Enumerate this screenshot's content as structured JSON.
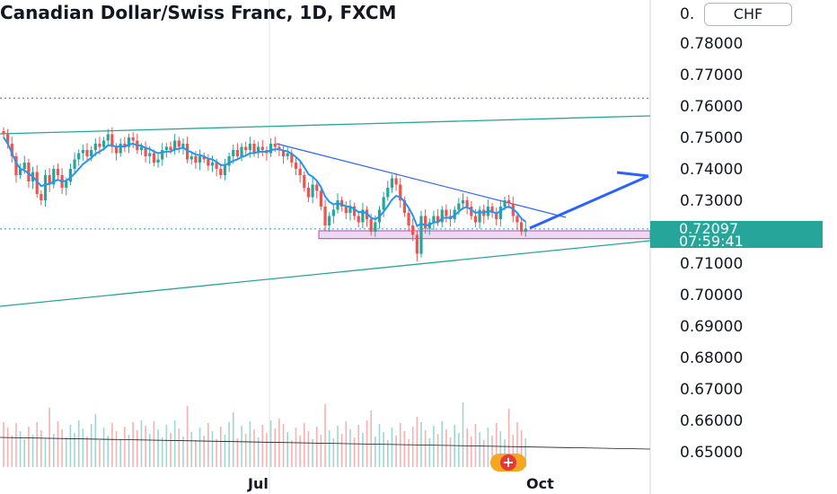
{
  "header": {
    "title": "Canadian Dollar/Swiss Franc, 1D, FXCM",
    "currency_button": "CHF"
  },
  "price_label": {
    "price": "0.72097",
    "countdown": "07:59:41"
  },
  "colors": {
    "up": "#26a69a",
    "down": "#ef5350",
    "ma_line": "#2196f3",
    "trend_line": "#2962ff",
    "support_zone": "#ce93d8",
    "price_label": "#26a69a"
  },
  "icons": [
    "snapshot-badge-icon"
  ],
  "chart_data": {
    "type": "candlestick",
    "instrument": "Canadian Dollar/Swiss Franc",
    "timeframe": "1D",
    "source": "FXCM",
    "y_axis": {
      "ticks": [
        0.78,
        0.77,
        0.76,
        0.75,
        0.74,
        0.73,
        0.71,
        0.7,
        0.69,
        0.68,
        0.67,
        0.66,
        0.65
      ],
      "tick_labels": [
        "0.78000",
        "0.77000",
        "0.76000",
        "0.75000",
        "0.74000",
        "0.73000",
        "0.71000",
        "0.70000",
        "0.69000",
        "0.68000",
        "0.67000",
        "0.66000",
        "0.65000"
      ],
      "partial_top_label": "0.",
      "range": [
        0.643,
        0.791
      ]
    },
    "x_axis": {
      "tick_labels": [
        "Jul",
        "Oct"
      ]
    },
    "last_price": 0.72097,
    "horizontal_levels": [
      0.7625,
      0.7209
    ],
    "support_zone": [
      0.7178,
      0.7203
    ],
    "closes": [
      0.751,
      0.748,
      0.744,
      0.738,
      0.74,
      0.742,
      0.736,
      0.739,
      0.732,
      0.73,
      0.738,
      0.735,
      0.74,
      0.738,
      0.734,
      0.736,
      0.74,
      0.743,
      0.745,
      0.746,
      0.744,
      0.746,
      0.748,
      0.747,
      0.749,
      0.751,
      0.747,
      0.745,
      0.748,
      0.747,
      0.75,
      0.749,
      0.746,
      0.747,
      0.744,
      0.745,
      0.742,
      0.743,
      0.746,
      0.747,
      0.746,
      0.749,
      0.747,
      0.748,
      0.743,
      0.744,
      0.742,
      0.744,
      0.743,
      0.741,
      0.742,
      0.74,
      0.738,
      0.741,
      0.744,
      0.746,
      0.744,
      0.747,
      0.746,
      0.748,
      0.745,
      0.747,
      0.746,
      0.745,
      0.748,
      0.747,
      0.746,
      0.744,
      0.745,
      0.742,
      0.74,
      0.738,
      0.734,
      0.731,
      0.735,
      0.733,
      0.728,
      0.722,
      0.725,
      0.727,
      0.73,
      0.728,
      0.726,
      0.728,
      0.725,
      0.723,
      0.727,
      0.724,
      0.72,
      0.723,
      0.727,
      0.731,
      0.734,
      0.737,
      0.735,
      0.73,
      0.726,
      0.722,
      0.719,
      0.713,
      0.725,
      0.721,
      0.723,
      0.725,
      0.723,
      0.727,
      0.725,
      0.724,
      0.727,
      0.729,
      0.73,
      0.728,
      0.725,
      0.723,
      0.727,
      0.725,
      0.728,
      0.726,
      0.724,
      0.728,
      0.73,
      0.729,
      0.725,
      0.723,
      0.72,
      0.721
    ],
    "ma": [
      0.75,
      0.748,
      0.745,
      0.742,
      0.74,
      0.7395,
      0.7385,
      0.7375,
      0.736,
      0.7345,
      0.735,
      0.7352,
      0.736,
      0.7365,
      0.736,
      0.7362,
      0.7372,
      0.7385,
      0.74,
      0.7415,
      0.7425,
      0.7435,
      0.7448,
      0.7455,
      0.7463,
      0.7475,
      0.7475,
      0.747,
      0.7472,
      0.747,
      0.7478,
      0.748,
      0.7475,
      0.7474,
      0.7466,
      0.7463,
      0.7455,
      0.745,
      0.7452,
      0.7455,
      0.7455,
      0.7462,
      0.7464,
      0.7468,
      0.7458,
      0.7453,
      0.7445,
      0.7444,
      0.744,
      0.7432,
      0.743,
      0.7422,
      0.7412,
      0.7412,
      0.7418,
      0.7426,
      0.743,
      0.7438,
      0.7442,
      0.745,
      0.745,
      0.7454,
      0.7455,
      0.7454,
      0.746,
      0.7462,
      0.7462,
      0.7458,
      0.7456,
      0.7448,
      0.7438,
      0.7425,
      0.7405,
      0.7383,
      0.7375,
      0.7362,
      0.7342,
      0.7312,
      0.7295,
      0.7287,
      0.729,
      0.7287,
      0.728,
      0.728,
      0.7272,
      0.7262,
      0.7264,
      0.7258,
      0.7244,
      0.724,
      0.7248,
      0.7264,
      0.7282,
      0.7302,
      0.7314,
      0.731,
      0.7296,
      0.7276,
      0.7252,
      0.7218,
      0.7226,
      0.722,
      0.7222,
      0.723,
      0.723,
      0.7243,
      0.7245,
      0.7244,
      0.7252,
      0.7264,
      0.7275,
      0.7278,
      0.727,
      0.726,
      0.7263,
      0.726,
      0.7266,
      0.7264,
      0.7258,
      0.7266,
      0.7276,
      0.728,
      0.7272,
      0.726,
      0.7242,
      0.7232
    ]
  }
}
